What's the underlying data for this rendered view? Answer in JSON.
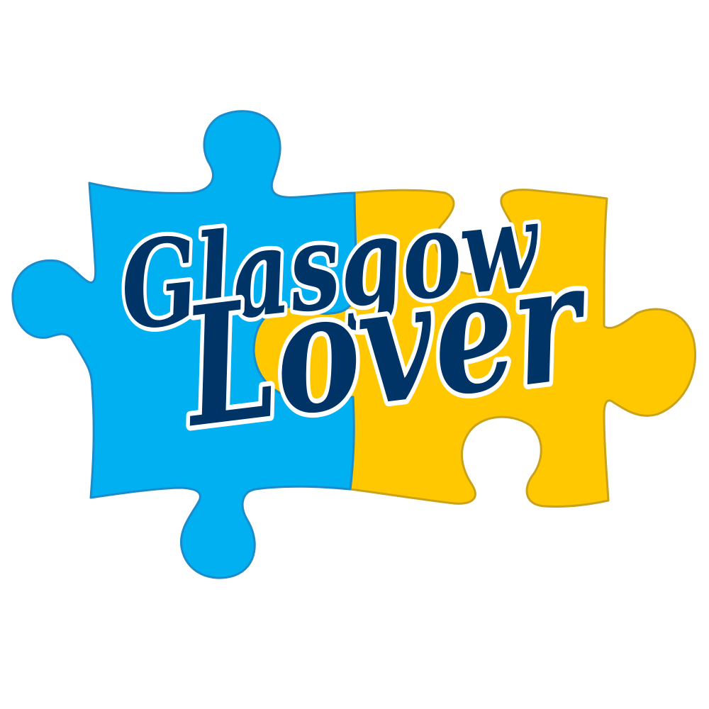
{
  "logo": {
    "line1": "Glasgow",
    "line2": "Lover"
  },
  "colors": {
    "background": "#ffffff",
    "blue_piece": "#00b0f0",
    "blue_piece_outline": "#1a8ccc",
    "yellow_piece": "#ffc800",
    "yellow_piece_outline": "#c9a21a",
    "lettering_fill": "#003366",
    "lettering_outline": "#ffffff"
  },
  "icons": [
    "blue-puzzle-piece-icon",
    "yellow-puzzle-piece-icon"
  ]
}
